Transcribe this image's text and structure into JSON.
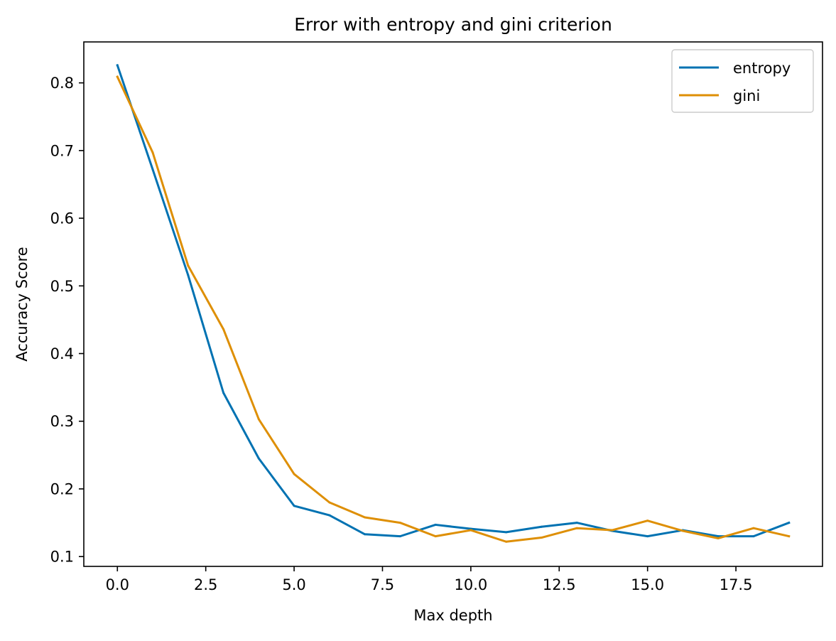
{
  "chart_data": {
    "type": "line",
    "title": "Error with entropy and gini criterion",
    "xlabel": "Max depth",
    "ylabel": "Accuracy Score",
    "xlim": [
      -0.95,
      19.95
    ],
    "ylim": [
      0.0855,
      0.8605
    ],
    "xticks": [
      0.0,
      2.5,
      5.0,
      7.5,
      10.0,
      12.5,
      15.0,
      17.5
    ],
    "xtick_labels": [
      "0.0",
      "2.5",
      "5.0",
      "7.5",
      "10.0",
      "12.5",
      "15.0",
      "17.5"
    ],
    "yticks": [
      0.1,
      0.2,
      0.3,
      0.4,
      0.5,
      0.6,
      0.7,
      0.8
    ],
    "ytick_labels": [
      "0.1",
      "0.2",
      "0.3",
      "0.4",
      "0.5",
      "0.6",
      "0.7",
      "0.8"
    ],
    "grid": false,
    "legend_position": "top-right",
    "x": [
      0,
      1,
      2,
      3,
      4,
      5,
      6,
      7,
      8,
      9,
      10,
      11,
      12,
      13,
      14,
      15,
      16,
      17,
      18,
      19
    ],
    "series": [
      {
        "name": "entropy",
        "color": "#0072b2",
        "values": [
          0.826,
          0.672,
          0.516,
          0.342,
          0.245,
          0.175,
          0.161,
          0.133,
          0.13,
          0.147,
          0.141,
          0.136,
          0.144,
          0.15,
          0.138,
          0.13,
          0.139,
          0.13,
          0.13,
          0.15
        ]
      },
      {
        "name": "gini",
        "color": "#de8f05",
        "values": [
          0.809,
          0.697,
          0.53,
          0.436,
          0.303,
          0.222,
          0.18,
          0.158,
          0.15,
          0.13,
          0.139,
          0.122,
          0.128,
          0.142,
          0.139,
          0.153,
          0.138,
          0.127,
          0.142,
          0.13
        ]
      }
    ]
  }
}
